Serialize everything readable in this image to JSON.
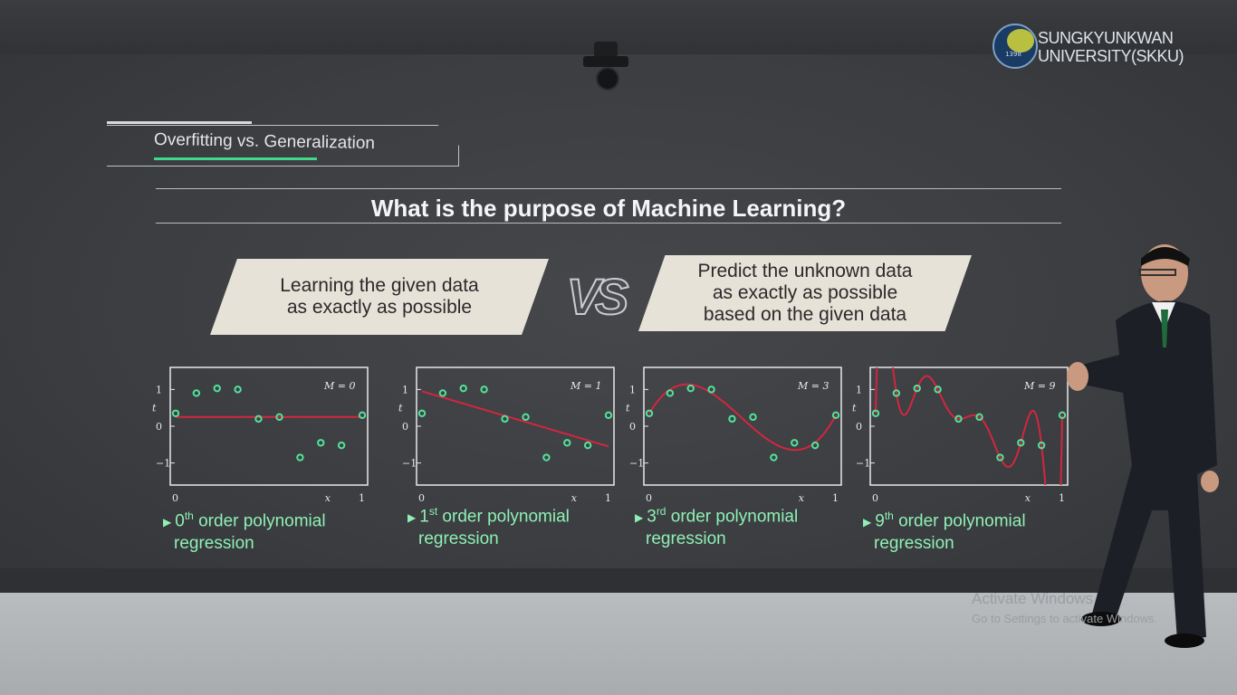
{
  "branding": {
    "year": "1398",
    "line1": "SUNGKYUNKWAN",
    "line2": "UNIVERSITY(SKKU)"
  },
  "section_title": "Overfitting vs. Generalization",
  "headline": "What is the purpose of Machine Learning?",
  "left_banner": {
    "line1": "Learning the given data",
    "line2": "as exactly as possible"
  },
  "vs_label": "VS",
  "right_banner": {
    "line1": "Predict the unknown data",
    "line2": "as exactly as possible",
    "line3": "based on the given data"
  },
  "plots": [
    {
      "m_label": "M = 0",
      "caption_num": "0",
      "caption_sup": "th",
      "caption_rest": " order polynomial",
      "caption_line2": "regression"
    },
    {
      "m_label": "M = 1",
      "caption_num": "1",
      "caption_sup": "st",
      "caption_rest": " order polynomial",
      "caption_line2": "regression"
    },
    {
      "m_label": "M = 3",
      "caption_num": "3",
      "caption_sup": "rd",
      "caption_rest": " order polynomial",
      "caption_line2": "regression"
    },
    {
      "m_label": "M = 9",
      "caption_num": "9",
      "caption_sup": "th",
      "caption_rest": " order polynomial",
      "caption_line2": "regression"
    }
  ],
  "axis": {
    "x_label": "x",
    "y_label": "t",
    "x_ticks": [
      "0",
      "1"
    ],
    "y_ticks": [
      "1",
      "0",
      "−1"
    ]
  },
  "sample_points": {
    "x": [
      0,
      0.111,
      0.222,
      0.333,
      0.444,
      0.556,
      0.667,
      0.778,
      0.889,
      1.0
    ],
    "t": [
      0.35,
      0.9,
      1.03,
      1.0,
      0.2,
      0.25,
      -0.85,
      -0.45,
      -0.52,
      0.3
    ]
  },
  "watermark": {
    "line1": "Activate Windows",
    "line2": "Go to Settings to activate Windows."
  },
  "colors": {
    "curve": "#d3263f",
    "points": "#52e29a",
    "caption": "#8ff0b4",
    "banner": "#e7e2d7"
  }
}
